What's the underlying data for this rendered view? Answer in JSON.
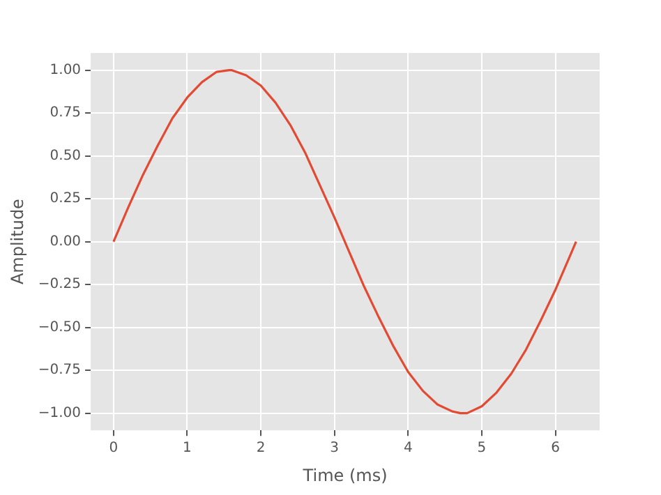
{
  "chart_data": {
    "type": "line",
    "xlabel": "Time (ms)",
    "ylabel": "Amplitude",
    "x": [
      0,
      0.2,
      0.4,
      0.6,
      0.8,
      1.0,
      1.2,
      1.4,
      1.57,
      1.6,
      1.8,
      2.0,
      2.2,
      2.4,
      2.6,
      2.8,
      3.0,
      3.2,
      3.4,
      3.6,
      3.8,
      4.0,
      4.2,
      4.4,
      4.6,
      4.71,
      4.8,
      5.0,
      5.2,
      5.4,
      5.6,
      5.8,
      6.0,
      6.2,
      6.28
    ],
    "series": [
      {
        "color": "#e24a33",
        "values": [
          0,
          0.2,
          0.39,
          0.56,
          0.72,
          0.84,
          0.93,
          0.99,
          1.0,
          1.0,
          0.97,
          0.91,
          0.81,
          0.68,
          0.52,
          0.33,
          0.14,
          -0.06,
          -0.26,
          -0.44,
          -0.61,
          -0.76,
          -0.87,
          -0.95,
          -0.99,
          -1.0,
          -1.0,
          -0.96,
          -0.88,
          -0.77,
          -0.63,
          -0.46,
          -0.28,
          -0.08,
          0.0
        ]
      }
    ],
    "xlim": [
      -0.31,
      6.6
    ],
    "ylim": [
      -1.1,
      1.1
    ],
    "xticks": [
      0,
      1,
      2,
      3,
      4,
      5,
      6
    ],
    "yticks": [
      {
        "value": -1,
        "label": "−1.00"
      },
      {
        "value": -0.75,
        "label": "−0.75"
      },
      {
        "value": -0.5,
        "label": "−0.50"
      },
      {
        "value": -0.25,
        "label": "−0.25"
      },
      {
        "value": 0,
        "label": "0.00"
      },
      {
        "value": 0.25,
        "label": "0.25"
      },
      {
        "value": 0.5,
        "label": "0.50"
      },
      {
        "value": 0.75,
        "label": "0.75"
      },
      {
        "value": 1,
        "label": "1.00"
      }
    ],
    "grid": true,
    "legend": false,
    "marker": "none",
    "line_style": "solid"
  }
}
